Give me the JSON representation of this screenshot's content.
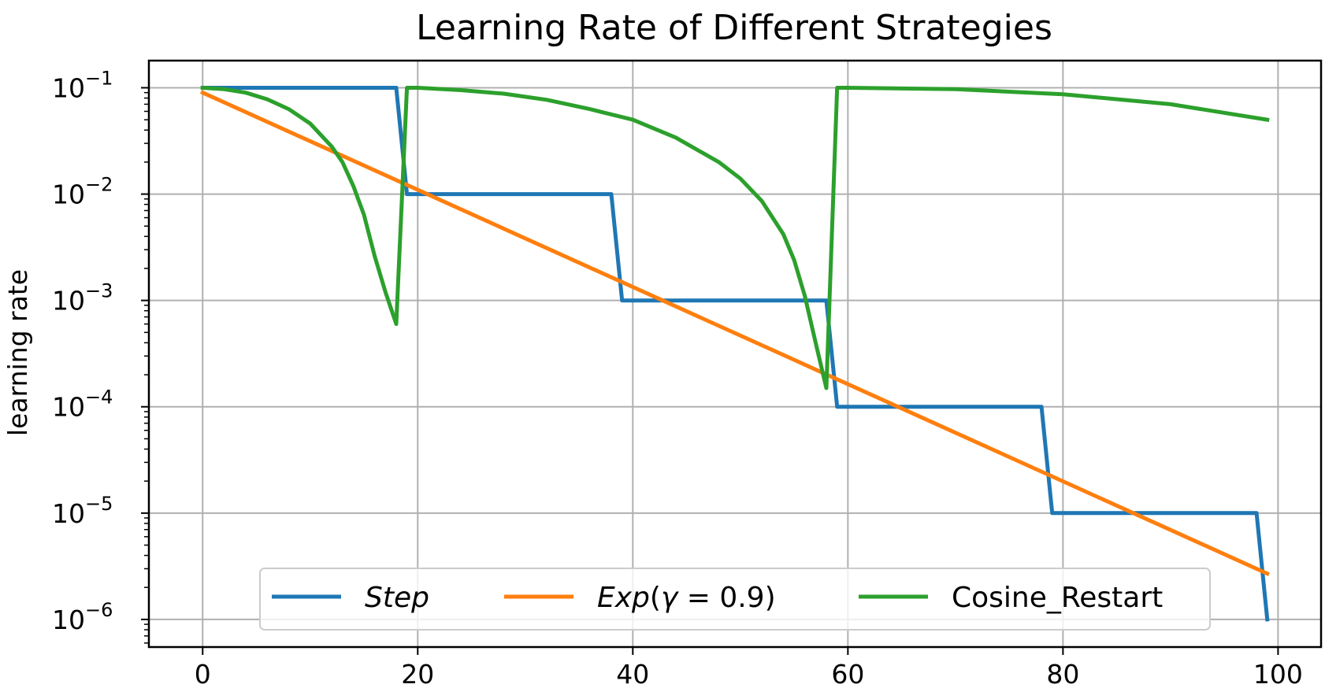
{
  "chart_data": {
    "type": "line",
    "title": "Learning Rate of Different Strategies",
    "xlabel": "",
    "ylabel": "learning rate",
    "yscale": "log",
    "xlim": [
      -5,
      104
    ],
    "ylim": [
      5.5e-07,
      0.18
    ],
    "xticks": [
      0,
      20,
      40,
      60,
      80,
      100
    ],
    "yticks": [
      {
        "base": "10",
        "exp": "−1"
      },
      {
        "base": "10",
        "exp": "−2"
      },
      {
        "base": "10",
        "exp": "−3"
      },
      {
        "base": "10",
        "exp": "−4"
      },
      {
        "base": "10",
        "exp": "−5"
      },
      {
        "base": "10",
        "exp": "−6"
      }
    ],
    "grid": true,
    "legend_position": "bottom-center",
    "series": [
      {
        "name": "Step",
        "label_parts": [
          {
            "t": "Step",
            "italic": true
          }
        ],
        "color": "#1f77b4",
        "x": [
          0,
          18,
          19,
          38,
          39,
          58,
          59,
          78,
          79,
          98,
          99
        ],
        "y": [
          0.1,
          0.1,
          0.01,
          0.01,
          0.001,
          0.001,
          0.0001,
          0.0001,
          1e-05,
          1e-05,
          1e-06
        ]
      },
      {
        "name": "Exp(γ = 0.9)",
        "label_parts": [
          {
            "t": "Exp",
            "italic": true
          },
          {
            "t": "(",
            "italic": false
          },
          {
            "t": "γ",
            "italic": true
          },
          {
            "t": " = 0.9)",
            "italic": false
          }
        ],
        "color": "#ff7f0e",
        "x": [
          0,
          99
        ],
        "y": [
          0.09,
          2.7e-06
        ]
      },
      {
        "name": "Cosine_Restart",
        "label_parts": [
          {
            "t": "Cosine_Restart",
            "italic": false
          }
        ],
        "color": "#2ca02c",
        "x": [
          0,
          2,
          4,
          6,
          8,
          10,
          12,
          13,
          14,
          15,
          16,
          17,
          18,
          19,
          20,
          24,
          28,
          32,
          36,
          40,
          44,
          48,
          50,
          52,
          54,
          55,
          56,
          57,
          58,
          59,
          60,
          70,
          80,
          90,
          99
        ],
        "y": [
          0.1,
          0.097,
          0.09,
          0.078,
          0.063,
          0.046,
          0.028,
          0.02,
          0.012,
          0.0064,
          0.0026,
          0.0012,
          0.0006,
          0.1,
          0.1,
          0.095,
          0.088,
          0.077,
          0.063,
          0.05,
          0.034,
          0.02,
          0.014,
          0.0086,
          0.0042,
          0.0024,
          0.0011,
          0.0004,
          0.00015,
          0.1,
          0.1,
          0.097,
          0.087,
          0.07,
          0.05
        ]
      }
    ]
  }
}
